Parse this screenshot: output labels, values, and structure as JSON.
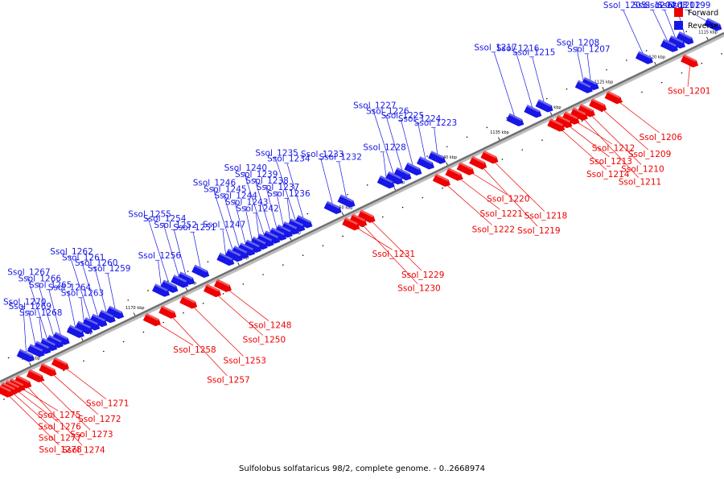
{
  "caption": "Sulfolobus solfataricus 98/2, complete genome. - 0..2668974",
  "colors": {
    "forward": "#ee0000",
    "reverse": "#1616e6",
    "backbone": "#808080"
  },
  "legend": [
    {
      "label": "Forward",
      "color": "#ee0000"
    },
    {
      "label": "Reverse",
      "color": "#1616e6"
    }
  ],
  "genome": {
    "name": "Sulfolobus solfataricus 98/2",
    "range_kbp": [
      1113.5,
      1183
    ],
    "ticks_kbp": [
      1115,
      1120,
      1125,
      1130,
      1135,
      1140,
      1145,
      1150,
      1155,
      1160,
      1165,
      1170,
      1175,
      1180
    ],
    "tick_unit": "kbp"
  },
  "genes": [
    {
      "label": "Ssol_1199",
      "strand": "reverse",
      "kbp": 1114.0
    },
    {
      "label": "Ssol_1201",
      "strand": "forward",
      "kbp": 1117.2
    },
    {
      "label": "Ssol_1202",
      "strand": "reverse",
      "kbp": 1116.7
    },
    {
      "label": "Ssol_1203",
      "strand": "reverse",
      "kbp": 1117.5
    },
    {
      "label": "Ssol_1204",
      "strand": "reverse",
      "kbp": 1118.2
    },
    {
      "label": "Ssol_1205",
      "strand": "reverse",
      "kbp": 1120.6
    },
    {
      "label": "Ssol_1206",
      "strand": "forward",
      "kbp": 1124.5
    },
    {
      "label": "Ssol_1207",
      "strand": "reverse",
      "kbp": 1125.8
    },
    {
      "label": "Ssol_1208",
      "strand": "reverse",
      "kbp": 1126.4
    },
    {
      "label": "Ssol_1209",
      "strand": "forward",
      "kbp": 1126.0
    },
    {
      "label": "Ssol_1210",
      "strand": "forward",
      "kbp": 1127.1
    },
    {
      "label": "Ssol_1211",
      "strand": "forward",
      "kbp": 1127.8
    },
    {
      "label": "Ssol_1212",
      "strand": "forward",
      "kbp": 1128.6
    },
    {
      "label": "Ssol_1213",
      "strand": "forward",
      "kbp": 1129.3
    },
    {
      "label": "Ssol_1214",
      "strand": "forward",
      "kbp": 1130.0
    },
    {
      "label": "Ssol_1215",
      "strand": "reverse",
      "kbp": 1130.2
    },
    {
      "label": "Ssol_1216",
      "strand": "reverse",
      "kbp": 1131.3
    },
    {
      "label": "Ssol_1217",
      "strand": "reverse",
      "kbp": 1133.0
    },
    {
      "label": "Ssol_1218",
      "strand": "forward",
      "kbp": 1136.4
    },
    {
      "label": "Ssol_1219",
      "strand": "forward",
      "kbp": 1137.5
    },
    {
      "label": "Ssol_1220",
      "strand": "forward",
      "kbp": 1138.7
    },
    {
      "label": "Ssol_1221",
      "strand": "forward",
      "kbp": 1139.8
    },
    {
      "label": "Ssol_1222",
      "strand": "forward",
      "kbp": 1141.0
    },
    {
      "label": "Ssol_1223",
      "strand": "reverse",
      "kbp": 1140.5
    },
    {
      "label": "Ssol_1224",
      "strand": "reverse",
      "kbp": 1141.6
    },
    {
      "label": "Ssol_1225",
      "strand": "reverse",
      "kbp": 1142.8
    },
    {
      "label": "Ssol_1226",
      "strand": "reverse",
      "kbp": 1143.8
    },
    {
      "label": "Ssol_1227",
      "strand": "reverse",
      "kbp": 1144.6
    },
    {
      "label": "Ssol_1228",
      "strand": "reverse",
      "kbp": 1145.4
    },
    {
      "label": "Ssol_1229",
      "strand": "forward",
      "kbp": 1148.2
    },
    {
      "label": "Ssol_1230",
      "strand": "forward",
      "kbp": 1149.0
    },
    {
      "label": "Ssol_1231",
      "strand": "forward",
      "kbp": 1149.7
    },
    {
      "label": "Ssol_1232",
      "strand": "reverse",
      "kbp": 1149.2
    },
    {
      "label": "Ssol_1233",
      "strand": "reverse",
      "kbp": 1150.5
    },
    {
      "label": "Ssol_1234",
      "strand": "reverse",
      "kbp": 1153.3
    },
    {
      "label": "Ssol_1235",
      "strand": "reverse",
      "kbp": 1154.0
    },
    {
      "label": "Ssol_1236",
      "strand": "reverse",
      "kbp": 1154.6
    },
    {
      "label": "Ssol_1237",
      "strand": "reverse",
      "kbp": 1155.2
    },
    {
      "label": "Ssol_1238",
      "strand": "reverse",
      "kbp": 1155.8
    },
    {
      "label": "Ssol_1239",
      "strand": "reverse",
      "kbp": 1156.4
    },
    {
      "label": "Ssol_1240",
      "strand": "reverse",
      "kbp": 1157.0
    },
    {
      "label": "Ssol_1242",
      "strand": "reverse",
      "kbp": 1157.6
    },
    {
      "label": "Ssol_1243",
      "strand": "reverse",
      "kbp": 1158.2
    },
    {
      "label": "Ssol_1244",
      "strand": "reverse",
      "kbp": 1158.8
    },
    {
      "label": "Ssol_1245",
      "strand": "reverse",
      "kbp": 1159.4
    },
    {
      "label": "Ssol_1246",
      "strand": "reverse",
      "kbp": 1160.0
    },
    {
      "label": "Ssol_1247",
      "strand": "reverse",
      "kbp": 1160.8
    },
    {
      "label": "Ssol_1248",
      "strand": "forward",
      "kbp": 1162.0
    },
    {
      "label": "Ssol_1250",
      "strand": "forward",
      "kbp": 1163.0
    },
    {
      "label": "Ssol_1251",
      "strand": "reverse",
      "kbp": 1163.2
    },
    {
      "label": "Ssol_1252",
      "strand": "reverse",
      "kbp": 1164.6
    },
    {
      "label": "Ssol_1253",
      "strand": "forward",
      "kbp": 1165.3
    },
    {
      "label": "Ssol_1254",
      "strand": "reverse",
      "kbp": 1165.2
    },
    {
      "label": "Ssol_1255",
      "strand": "reverse",
      "kbp": 1166.2
    },
    {
      "label": "Ssol_1256",
      "strand": "reverse",
      "kbp": 1167.0
    },
    {
      "label": "Ssol_1257",
      "strand": "forward",
      "kbp": 1167.3
    },
    {
      "label": "Ssol_1258",
      "strand": "forward",
      "kbp": 1168.8
    },
    {
      "label": "Ssol_1259",
      "strand": "reverse",
      "kbp": 1171.4
    },
    {
      "label": "Ssol_1260",
      "strand": "reverse",
      "kbp": 1172.2
    },
    {
      "label": "Ssol_1261",
      "strand": "reverse",
      "kbp": 1173.0
    },
    {
      "label": "Ssol_1262",
      "strand": "reverse",
      "kbp": 1173.7
    },
    {
      "label": "Ssol_1263",
      "strand": "reverse",
      "kbp": 1174.4
    },
    {
      "label": "Ssol_1264",
      "strand": "reverse",
      "kbp": 1175.2
    },
    {
      "label": "Ssol_1265",
      "strand": "reverse",
      "kbp": 1176.6
    },
    {
      "label": "Ssol_1266",
      "strand": "reverse",
      "kbp": 1177.2
    },
    {
      "label": "Ssol_1267",
      "strand": "reverse",
      "kbp": 1177.8
    },
    {
      "label": "Ssol_1268",
      "strand": "reverse",
      "kbp": 1178.4
    },
    {
      "label": "Ssol_1269",
      "strand": "reverse",
      "kbp": 1179.0
    },
    {
      "label": "Ssol_1270",
      "strand": "reverse",
      "kbp": 1180.0
    },
    {
      "label": "Ssol_1271",
      "strand": "forward",
      "kbp": 1177.6
    },
    {
      "label": "Ssol_1272",
      "strand": "forward",
      "kbp": 1178.8
    },
    {
      "label": "Ssol_1273",
      "strand": "forward",
      "kbp": 1180.0
    },
    {
      "label": "Ssol_1274",
      "strand": "forward",
      "kbp": 1181.2
    },
    {
      "label": "Ssol_1275",
      "strand": "forward",
      "kbp": 1181.8
    },
    {
      "label": "Ssol_1276",
      "strand": "forward",
      "kbp": 1182.2
    },
    {
      "label": "Ssol_1277",
      "strand": "forward",
      "kbp": 1182.6
    },
    {
      "label": "Ssol_1278",
      "strand": "forward",
      "kbp": 1183.0
    }
  ]
}
